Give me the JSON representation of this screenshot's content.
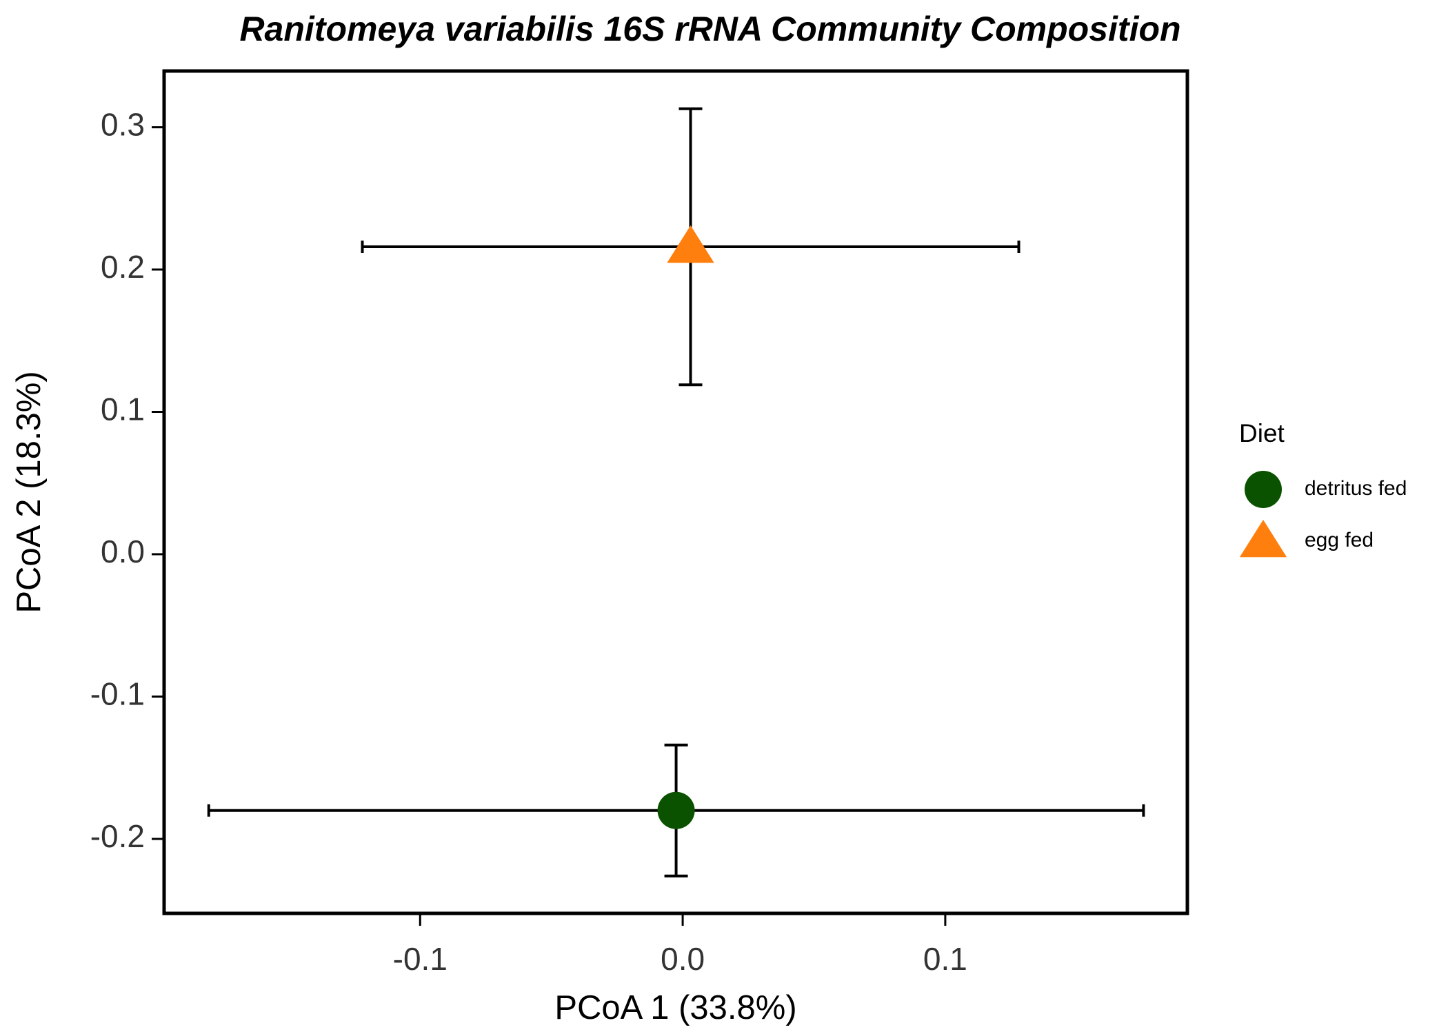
{
  "chart_data": {
    "type": "scatter",
    "title": "Ranitomeya variabilis 16S rRNA Community Composition",
    "x_label": "PCoA 1 (33.8%)",
    "y_label": "PCoA 2 (18.3%)",
    "legend_title": "Diet",
    "xlim": [
      -0.1975,
      0.1922
    ],
    "ylim": [
      -0.2523,
      0.3395
    ],
    "xticks": [
      {
        "value": -0.1,
        "label": "-0.1"
      },
      {
        "value": 0,
        "label": "0.0"
      },
      {
        "value": 0.1,
        "label": "0.1"
      }
    ],
    "yticks": [
      {
        "value": -0.2,
        "label": "-0.2"
      },
      {
        "value": -0.1,
        "label": "-0.1"
      },
      {
        "value": 0,
        "label": "0.0"
      },
      {
        "value": 0.1,
        "label": "0.1"
      },
      {
        "value": 0.2,
        "label": "0.2"
      },
      {
        "value": 0.3,
        "label": "0.3"
      }
    ],
    "series": [
      {
        "name": "detritus fed",
        "color": "#0b5200",
        "marker": "circle",
        "x": [
          -0.0025
        ],
        "y": [
          -0.18
        ],
        "xerr": [
          0.178
        ],
        "yerr": [
          0.046
        ]
      },
      {
        "name": "egg fed",
        "color": "#ff7f0e",
        "marker": "triangle",
        "x": [
          0.003
        ],
        "y": [
          0.216
        ],
        "xerr": [
          0.125
        ],
        "yerr": [
          0.097
        ]
      }
    ]
  }
}
